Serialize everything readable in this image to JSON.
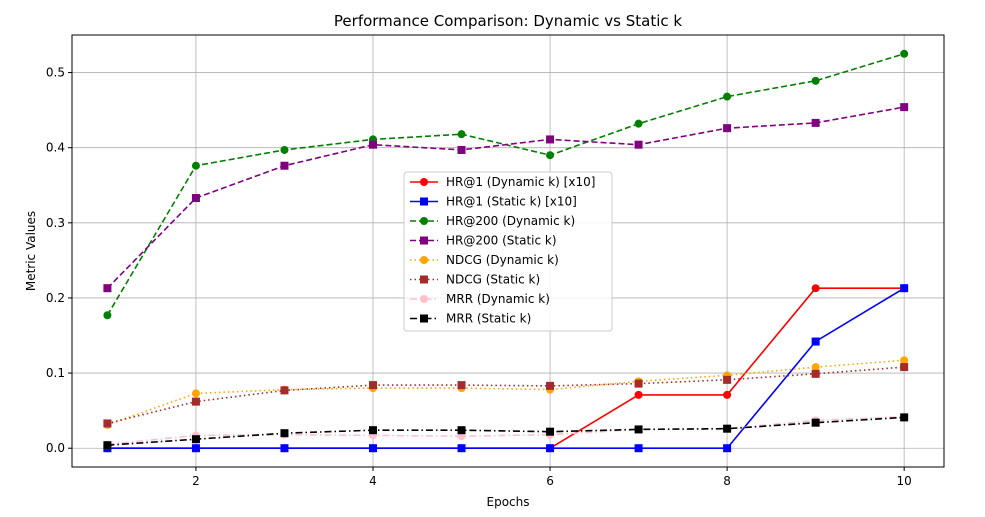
{
  "chart_data": {
    "type": "line",
    "title": "Performance Comparison: Dynamic vs Static k",
    "xlabel": "Epochs",
    "ylabel": "Metric Values",
    "xlim": [
      0.6,
      10.45
    ],
    "ylim": [
      -0.025,
      0.55
    ],
    "xticks": [
      2,
      4,
      6,
      8,
      10
    ],
    "yticks": [
      0.0,
      0.1,
      0.2,
      0.3,
      0.4,
      0.5
    ],
    "grid": true,
    "legend_position": "center",
    "x": [
      1,
      2,
      3,
      4,
      5,
      6,
      7,
      8,
      9,
      10
    ],
    "series": [
      {
        "name": "HR@1 (Dynamic k) [x10]",
        "color": "#ff0000",
        "linestyle": "solid",
        "marker": "circle",
        "values": [
          0.0,
          0.0,
          0.0,
          0.0,
          0.0,
          0.0,
          0.071,
          0.071,
          0.213,
          0.213
        ]
      },
      {
        "name": "HR@1 (Static k) [x10]",
        "color": "#0000ff",
        "linestyle": "solid",
        "marker": "square",
        "values": [
          0.0,
          0.0,
          0.0,
          0.0,
          0.0,
          0.0,
          0.0,
          0.0,
          0.142,
          0.213
        ]
      },
      {
        "name": "HR@200 (Dynamic k)",
        "color": "#008000",
        "linestyle": "dashed",
        "marker": "circle",
        "values": [
          0.177,
          0.376,
          0.397,
          0.411,
          0.418,
          0.39,
          0.432,
          0.468,
          0.489,
          0.525
        ]
      },
      {
        "name": "HR@200 (Static k)",
        "color": "#800080",
        "linestyle": "dashed",
        "marker": "square",
        "values": [
          0.213,
          0.333,
          0.376,
          0.404,
          0.397,
          0.411,
          0.404,
          0.426,
          0.433,
          0.454
        ]
      },
      {
        "name": "NDCG (Dynamic k)",
        "color": "#ffa500",
        "linestyle": "dotted",
        "marker": "circle",
        "values": [
          0.031,
          0.073,
          0.078,
          0.08,
          0.08,
          0.078,
          0.089,
          0.097,
          0.108,
          0.117
        ]
      },
      {
        "name": "NDCG (Static k)",
        "color": "#a52a2a",
        "linestyle": "dotted",
        "marker": "square",
        "values": [
          0.033,
          0.062,
          0.077,
          0.084,
          0.084,
          0.083,
          0.086,
          0.091,
          0.099,
          0.108
        ]
      },
      {
        "name": "MRR (Dynamic k)",
        "color": "#ffc0cb",
        "linestyle": "dashdot",
        "marker": "circle",
        "values": [
          0.005,
          0.017,
          0.018,
          0.017,
          0.016,
          0.018,
          0.025,
          0.026,
          0.037,
          0.042
        ]
      },
      {
        "name": "MRR (Static k)",
        "color": "#000000",
        "linestyle": "dashdot",
        "marker": "square",
        "values": [
          0.004,
          0.012,
          0.02,
          0.024,
          0.024,
          0.022,
          0.025,
          0.026,
          0.034,
          0.041
        ]
      }
    ]
  }
}
